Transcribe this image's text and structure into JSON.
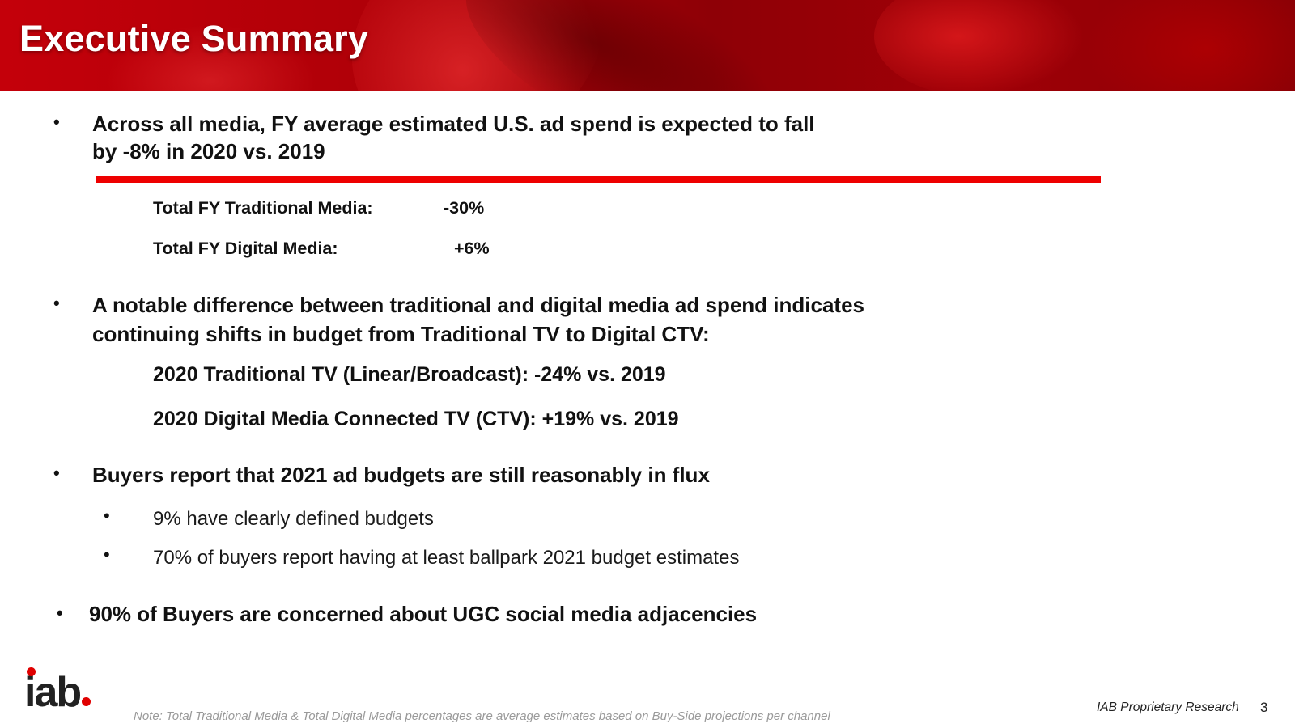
{
  "header": {
    "title": "Executive Summary"
  },
  "bullet_glyph": "•",
  "section1": {
    "line1": "Across all media, FY average estimated U.S. ad spend is expected to fall",
    "line2": "by -8% in 2020 vs. 2019",
    "rows": [
      {
        "label": "Total FY Traditional Media:",
        "value": "-30%"
      },
      {
        "label": "Total FY Digital Media:",
        "value": "+6%"
      }
    ]
  },
  "section2": {
    "line1": "A notable difference between traditional and digital media ad spend indicates",
    "line2": "continuing shifts in budget from Traditional TV to Digital CTV:",
    "items": [
      "2020 Traditional TV (Linear/Broadcast): -24% vs. 2019",
      "2020 Digital Media Connected TV (CTV): +19% vs. 2019"
    ]
  },
  "section3": {
    "heading": "Buyers report that 2021 ad budgets are still reasonably in flux",
    "items": [
      "9% have clearly defined budgets",
      "70% of buyers report having at least ballpark 2021 budget estimates"
    ]
  },
  "section4": {
    "heading": "90% of Buyers are concerned about UGC social media adjacencies"
  },
  "footer": {
    "logo_text": "iab",
    "note": "Note: Total Traditional Media & Total Digital Media percentages are average estimates based on Buy-Side projections per channel",
    "research_label": "IAB Proprietary Research",
    "page_number": "3"
  },
  "colors": {
    "brand_red": "#e00000",
    "rule_red": "#ee0000",
    "text": "#111111"
  }
}
